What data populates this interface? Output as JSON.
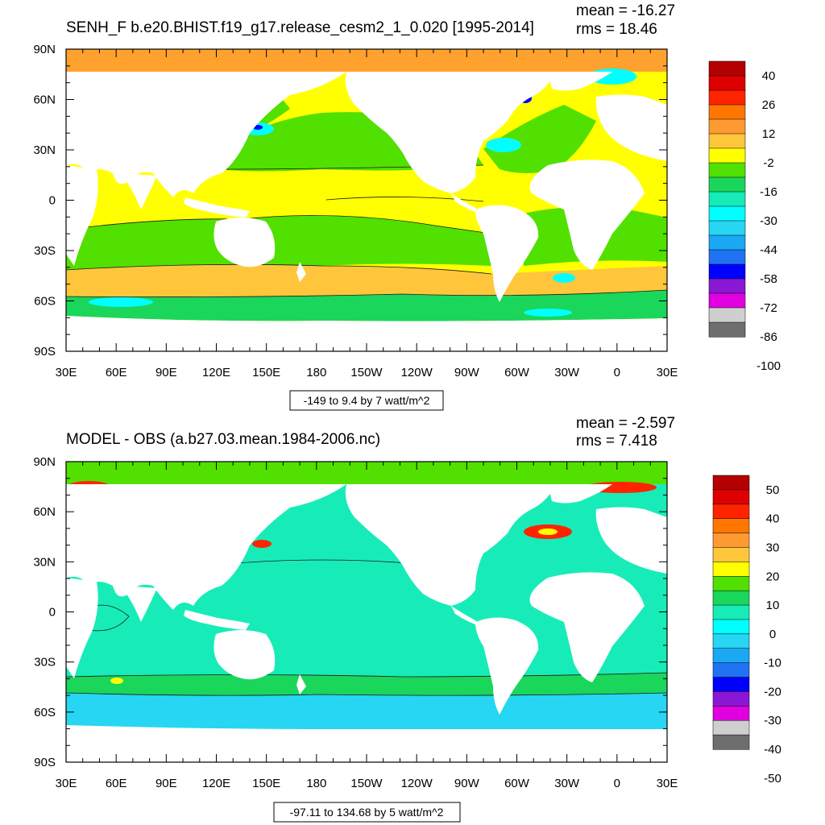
{
  "colors": {
    "land": "#ffffff",
    "frame": "#000000",
    "contour": "#1a1a1a"
  },
  "chart_data": [
    {
      "type": "heatmap",
      "title": "SENH_F b.e20.BHIST.f19_g17.release_cesm2_1_0.020 [1995-2014]",
      "stat_mean": "mean = -16.27",
      "stat_rms": "rms = 18.46",
      "xticks": [
        "30E",
        "60E",
        "90E",
        "120E",
        "150E",
        "180",
        "150W",
        "120W",
        "90W",
        "60W",
        "30W",
        "0",
        "30E"
      ],
      "yticks": [
        "90N",
        "60N",
        "30N",
        "0",
        "30S",
        "60S",
        "90S"
      ],
      "xlim": [
        30,
        390
      ],
      "ylim": [
        -90,
        90
      ],
      "range_label": "-149 to 9.4 by 7 watt/m^2",
      "colorbar": {
        "labels": [
          "40",
          "26",
          "12",
          "-2",
          "-16",
          "-30",
          "-44",
          "-58",
          "-72",
          "-86",
          "-100"
        ],
        "colors": [
          "#b40000",
          "#de0000",
          "#ff2400",
          "#ff7700",
          "#ff9a32",
          "#ffc63c",
          "#ffff00",
          "#52e000",
          "#1ad65a",
          "#17ecb8",
          "#00ffff",
          "#27d6f2",
          "#1aa8f5",
          "#1f73f2",
          "#0000ff",
          "#8a17d3",
          "#e000e0",
          "#cfcfcf",
          "#6e6e6e"
        ]
      },
      "field": {
        "north_cap": "#ffa12e",
        "tropics": "#ffff00",
        "subtropics": "#52e000",
        "south_band": "#ffc63c",
        "southern_ocean": "#1ad65a",
        "boundary_current": "#00ffff",
        "extreme": "#0000ff"
      }
    },
    {
      "type": "heatmap",
      "title": "MODEL - OBS (a.b27.03.mean.1984-2006.nc)",
      "stat_mean": "mean = -2.597",
      "stat_rms": "rms = 7.418",
      "xticks": [
        "30E",
        "60E",
        "90E",
        "120E",
        "150E",
        "180",
        "150W",
        "120W",
        "90W",
        "60W",
        "30W",
        "0",
        "30E"
      ],
      "yticks": [
        "90N",
        "60N",
        "30N",
        "0",
        "30S",
        "60S",
        "90S"
      ],
      "xlim": [
        30,
        390
      ],
      "ylim": [
        -90,
        90
      ],
      "range_label": "-97.11 to 134.68 by 5 watt/m^2",
      "colorbar": {
        "labels": [
          "50",
          "40",
          "30",
          "20",
          "10",
          "0",
          "-10",
          "-20",
          "-30",
          "-40",
          "-50"
        ],
        "colors": [
          "#b40000",
          "#de0000",
          "#ff2400",
          "#ff7700",
          "#ff9a32",
          "#ffc63c",
          "#ffff00",
          "#52e000",
          "#1ad65a",
          "#17ecb8",
          "#00ffff",
          "#27d6f2",
          "#1aa8f5",
          "#1f73f2",
          "#0000ff",
          "#8a17d3",
          "#e000e0",
          "#cfcfcf",
          "#6e6e6e"
        ]
      },
      "field": {
        "north_cap": "#52e000",
        "tropics": "#17ecb8",
        "subtropics": "#00ffff",
        "south_band": "#1ad65a",
        "southern_ocean": "#27d6f2",
        "boundary_current": "#ff2400",
        "extreme": "#ffff00"
      }
    }
  ]
}
